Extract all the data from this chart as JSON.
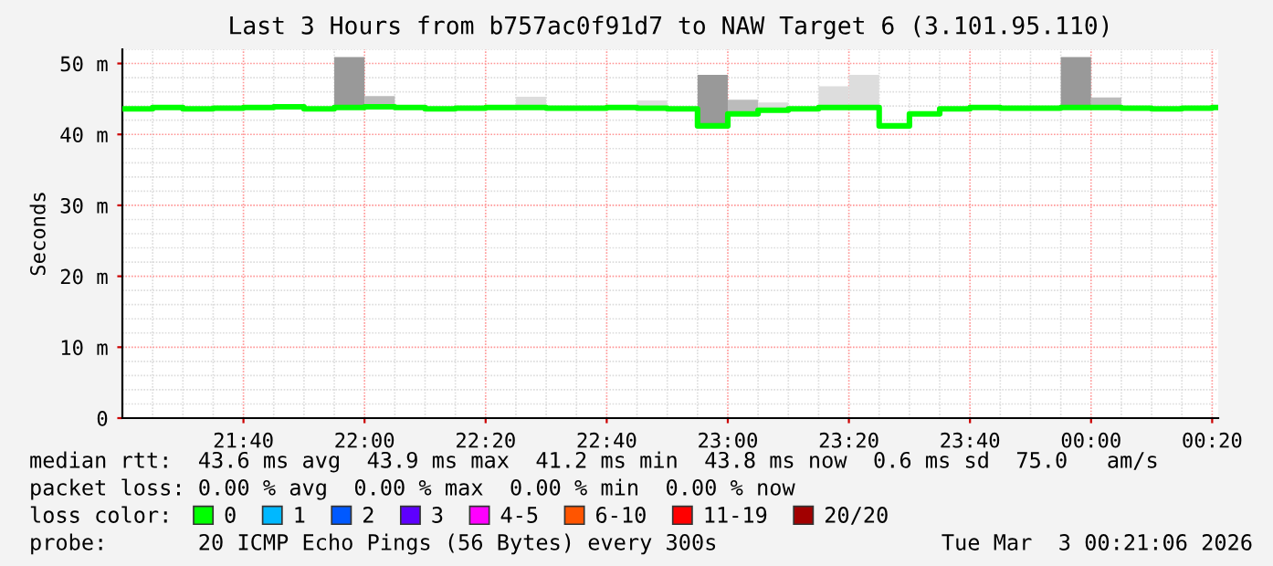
{
  "chart_data": {
    "type": "step",
    "title": "Last 3 Hours from b757ac0f91d7 to NAW Target 6 (3.101.95.110)",
    "ylabel": "Seconds",
    "x": [
      "2026-03-02T21:20",
      "2026-03-02T21:25",
      "2026-03-02T21:30",
      "2026-03-02T21:35",
      "2026-03-02T21:40",
      "2026-03-02T21:45",
      "2026-03-02T21:50",
      "2026-03-02T21:55",
      "2026-03-02T22:00",
      "2026-03-02T22:05",
      "2026-03-02T22:10",
      "2026-03-02T22:15",
      "2026-03-02T22:20",
      "2026-03-02T22:25",
      "2026-03-02T22:30",
      "2026-03-02T22:35",
      "2026-03-02T22:40",
      "2026-03-02T22:45",
      "2026-03-02T22:50",
      "2026-03-02T22:55",
      "2026-03-02T23:00",
      "2026-03-02T23:05",
      "2026-03-02T23:10",
      "2026-03-02T23:15",
      "2026-03-02T23:20",
      "2026-03-02T23:25",
      "2026-03-02T23:30",
      "2026-03-02T23:35",
      "2026-03-02T23:40",
      "2026-03-02T23:45",
      "2026-03-02T23:50",
      "2026-03-02T23:55",
      "2026-03-03T00:00",
      "2026-03-03T00:05",
      "2026-03-03T00:10",
      "2026-03-03T00:15",
      "2026-03-03T00:20"
    ],
    "series": [
      {
        "type": "bar",
        "x": [
          "2026-03-02T21:57:30",
          "2026-03-02T22:02:30",
          "2026-03-02T22:07:30",
          "2026-03-02T22:12:30",
          "2026-03-02T22:17:30",
          "2026-03-02T22:22:30",
          "2026-03-02T22:27:30",
          "2026-03-02T22:32:30",
          "2026-03-02T22:37:30",
          "2026-03-02T22:42:30",
          "2026-03-02T22:47:30",
          "2026-03-02T22:52:30",
          "2026-03-02T22:57:30",
          "2026-03-02T23:02:30",
          "2026-03-02T23:07:30",
          "2026-03-02T23:12:30",
          "2026-03-02T23:17:30",
          "2026-03-02T23:22:30",
          "2026-03-02T23:27:30",
          "2026-03-02T23:32:30",
          "2026-03-02T23:37:30",
          "2026-03-02T23:42:30",
          "2026-03-02T23:47:30",
          "2026-03-02T23:52:30",
          "2026-03-02T23:57:30",
          "2026-03-03T00:02:30"
        ],
        "colors": [
          "#999999",
          "#bbbbbb",
          null,
          null,
          null,
          null,
          "#dddddd",
          null,
          null,
          null,
          "#dddddd",
          null,
          "#999999",
          "#bbbbbb",
          "#dddddd",
          null,
          "#dddddd",
          "#dddddd",
          null,
          null,
          null,
          null,
          null,
          null,
          "#999999",
          "#bbbbbb"
        ],
        "base": [
          43.6,
          43.6,
          null,
          null,
          null,
          null,
          43.7,
          null,
          null,
          null,
          43.7,
          null,
          41.2,
          42.9,
          43.4,
          null,
          43.6,
          43.6,
          null,
          null,
          null,
          null,
          null,
          null,
          43.7,
          43.7
        ],
        "values": [
          7.3,
          1.8,
          null,
          null,
          null,
          null,
          1.6,
          null,
          null,
          null,
          1.1,
          null,
          7.2,
          2.0,
          1.1,
          null,
          3.2,
          4.8,
          null,
          null,
          null,
          null,
          null,
          null,
          7.2,
          1.5
        ]
      },
      {
        "name": "0",
        "color": "#00ff00",
        "values": [
          43.6,
          43.8,
          43.6,
          43.7,
          43.8,
          43.9,
          43.6,
          43.8,
          43.9,
          43.8,
          43.6,
          43.7,
          43.8,
          43.8,
          43.7,
          43.7,
          43.8,
          43.7,
          43.6,
          41.2,
          42.9,
          43.4,
          43.6,
          43.8,
          43.8,
          41.2,
          42.9,
          43.6,
          43.8,
          43.7,
          43.7,
          43.8,
          43.8,
          43.7,
          43.6,
          43.7,
          43.8
        ]
      },
      {
        "name": "1",
        "color": "#00b8ff",
        "values": [
          null,
          null,
          null,
          null,
          null,
          null,
          null,
          null,
          null,
          null,
          null,
          null,
          null,
          null,
          null,
          null,
          null,
          null,
          null,
          null,
          null,
          null,
          null,
          null,
          null,
          null,
          null,
          null,
          null,
          null,
          null,
          null,
          null,
          null,
          null,
          null,
          null
        ]
      },
      {
        "name": "2",
        "color": "#0059ff",
        "values": [
          null,
          null,
          null,
          null,
          null,
          null,
          null,
          null,
          null,
          null,
          null,
          null,
          null,
          null,
          null,
          null,
          null,
          null,
          null,
          null,
          null,
          null,
          null,
          null,
          null,
          null,
          null,
          null,
          null,
          null,
          null,
          null,
          null,
          null,
          null,
          null,
          null
        ]
      },
      {
        "name": "3",
        "color": "#5e00ff",
        "values": [
          null,
          null,
          null,
          null,
          null,
          null,
          null,
          null,
          null,
          null,
          null,
          null,
          null,
          null,
          null,
          null,
          null,
          null,
          null,
          null,
          null,
          null,
          null,
          null,
          null,
          null,
          null,
          null,
          null,
          null,
          null,
          null,
          null,
          null,
          null,
          null,
          null
        ]
      },
      {
        "name": "4-5",
        "color": "#ff00ff",
        "values": [
          null,
          null,
          null,
          null,
          null,
          null,
          null,
          null,
          null,
          null,
          null,
          null,
          null,
          null,
          null,
          null,
          null,
          null,
          null,
          null,
          null,
          null,
          null,
          null,
          null,
          null,
          null,
          null,
          null,
          null,
          null,
          null,
          null,
          null,
          null,
          null,
          null
        ]
      },
      {
        "name": "6-10",
        "color": "#ff5500",
        "values": [
          null,
          null,
          null,
          null,
          null,
          null,
          null,
          null,
          null,
          null,
          null,
          null,
          null,
          null,
          null,
          null,
          null,
          null,
          null,
          null,
          null,
          null,
          null,
          null,
          null,
          null,
          null,
          null,
          null,
          null,
          null,
          null,
          null,
          null,
          null,
          null,
          null
        ]
      },
      {
        "name": "11-19",
        "color": "#ff0000",
        "values": [
          null,
          null,
          null,
          null,
          null,
          null,
          null,
          null,
          null,
          null,
          null,
          null,
          null,
          null,
          null,
          null,
          null,
          null,
          null,
          null,
          null,
          null,
          null,
          null,
          null,
          null,
          null,
          null,
          null,
          null,
          null,
          null,
          null,
          null,
          null,
          null,
          null
        ]
      },
      {
        "name": "20/20",
        "color": "#a10000",
        "values": [
          null,
          null,
          null,
          null,
          null,
          null,
          null,
          null,
          null,
          null,
          null,
          null,
          null,
          null,
          null,
          null,
          null,
          null,
          null,
          null,
          null,
          null,
          null,
          null,
          null,
          null,
          null,
          null,
          null,
          null,
          null,
          null,
          null,
          null,
          null,
          null,
          null
        ]
      }
    ],
    "xlim": [
      "2026-03-02T21:20",
      "2026-03-03T00:21"
    ],
    "xticks": [
      {
        "value": "2026-03-02T21:40",
        "label": "21:40"
      },
      {
        "value": "2026-03-02T22:00",
        "label": "22:00"
      },
      {
        "value": "2026-03-02T22:20",
        "label": "22:20"
      },
      {
        "value": "2026-03-02T22:40",
        "label": "22:40"
      },
      {
        "value": "2026-03-02T23:00",
        "label": "23:00"
      },
      {
        "value": "2026-03-02T23:20",
        "label": "23:20"
      },
      {
        "value": "2026-03-02T23:40",
        "label": "23:40"
      },
      {
        "value": "2026-03-03T00:00",
        "label": "00:00"
      },
      {
        "value": "2026-03-03T00:20",
        "label": "00:20"
      }
    ],
    "ylim": [
      0,
      52
    ],
    "yticks": [
      0,
      {
        "value": 10,
        "label": "10 m"
      },
      {
        "value": 20,
        "label": "20 m"
      },
      {
        "value": 30,
        "label": "30 m"
      },
      {
        "value": 40,
        "label": "40 m"
      },
      {
        "value": 50,
        "label": "50 m"
      }
    ],
    "grid": true,
    "legend": "bottom",
    "legend_title": "loss color:",
    "annotations": [
      "median rtt:  43.6 ms avg  43.9 ms max  41.2 ms min  43.8 ms now  0.6 ms sd  75.0   am/s",
      "packet loss: 0.00 % avg  0.00 % max  0.00 % min  0.00 % now",
      "probe:       20 ICMP Echo Pings (56 Bytes) every 300s",
      "Tue Mar  3 00:21:06 2026"
    ]
  }
}
